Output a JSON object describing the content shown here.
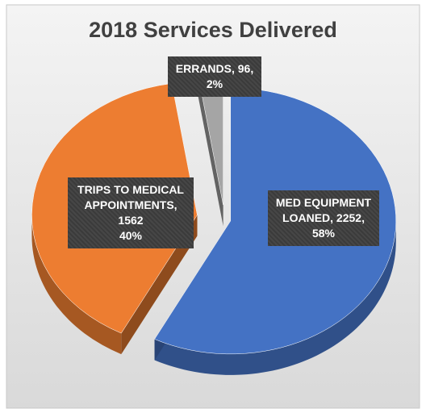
{
  "chart_data": {
    "type": "pie",
    "title": "2018 Services Delivered",
    "categories": [
      "MED EQUIPMENT LOANED,",
      "TRIPS TO MEDICAL APPOINTMENTS,",
      "ERRANDS,"
    ],
    "values": [
      2252,
      1562,
      96
    ],
    "value_labels": [
      "2252,",
      "1562",
      "96,"
    ],
    "percents": [
      58,
      40,
      2
    ],
    "percent_labels": [
      "58%",
      "40%",
      "2%"
    ],
    "colors": [
      "#4472c4",
      "#ed7d31",
      "#a5a5a5"
    ]
  }
}
